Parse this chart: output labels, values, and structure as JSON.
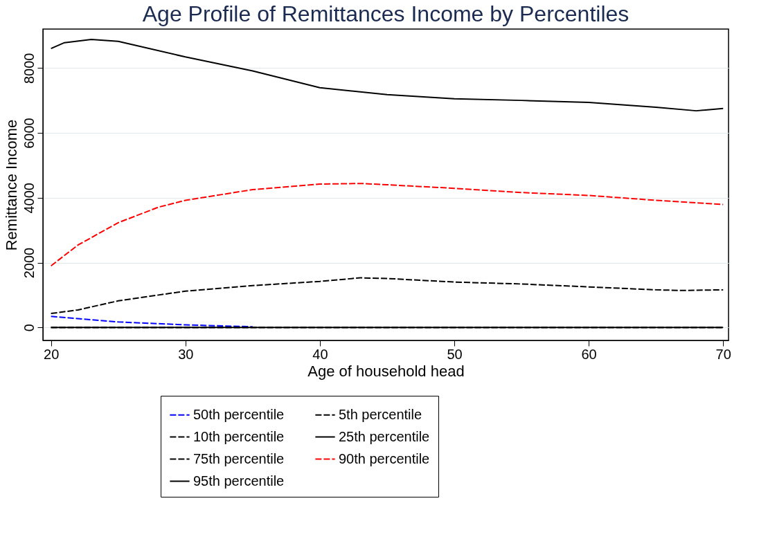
{
  "chart_data": {
    "type": "line",
    "title": "Age Profile of Remittances Income by Percentiles",
    "xlabel": "Age of household head",
    "ylabel": "Remittance Income",
    "xlim": [
      19.4,
      70.4
    ],
    "ylim": [
      -400,
      9200
    ],
    "xticks": [
      20,
      30,
      40,
      50,
      60,
      70
    ],
    "yticks": [
      0,
      2000,
      4000,
      6000,
      8000
    ],
    "grid": "y",
    "legend": "bottom",
    "marker": "none",
    "series": [
      {
        "name": "50th percentile",
        "color": "#0000ff",
        "line_style": "dashed",
        "x": [
          20,
          25,
          30,
          35
        ],
        "values": [
          340,
          170,
          80,
          20
        ]
      },
      {
        "name": "5th percentile",
        "color": "#000000",
        "line_style": "dashed",
        "x": [
          20,
          30,
          40,
          50,
          60,
          70
        ],
        "values": [
          0,
          0,
          0,
          0,
          0,
          0
        ]
      },
      {
        "name": "10th percentile",
        "color": "#000000",
        "line_style": "dashed",
        "x": [
          20,
          30,
          40,
          50,
          60,
          70
        ],
        "values": [
          0,
          0,
          0,
          0,
          0,
          0
        ]
      },
      {
        "name": "25th percentile",
        "color": "#000000",
        "line_style": "solid",
        "x": [
          20,
          30,
          40,
          50,
          60,
          70
        ],
        "values": [
          0,
          0,
          0,
          0,
          0,
          0
        ]
      },
      {
        "name": "75th percentile",
        "color": "#000000",
        "line_style": "dashed",
        "x": [
          20,
          22,
          25,
          30,
          35,
          40,
          43,
          45,
          50,
          55,
          60,
          65,
          67,
          70
        ],
        "values": [
          430,
          540,
          820,
          1120,
          1290,
          1420,
          1530,
          1510,
          1400,
          1340,
          1250,
          1160,
          1140,
          1160
        ]
      },
      {
        "name": "90th percentile",
        "color": "#ff0000",
        "line_style": "dashed",
        "x": [
          20,
          22,
          25,
          28,
          30,
          35,
          40,
          43,
          45,
          50,
          55,
          60,
          65,
          70
        ],
        "values": [
          1900,
          2540,
          3230,
          3710,
          3920,
          4250,
          4420,
          4440,
          4400,
          4290,
          4160,
          4070,
          3920,
          3790
        ]
      },
      {
        "name": "95th percentile",
        "color": "#000000",
        "line_style": "solid",
        "x": [
          20,
          21,
          23,
          25,
          30,
          35,
          40,
          45,
          50,
          55,
          60,
          65,
          68,
          70
        ],
        "values": [
          8600,
          8780,
          8880,
          8820,
          8340,
          7910,
          7390,
          7180,
          7050,
          7000,
          6940,
          6790,
          6680,
          6750
        ]
      }
    ]
  }
}
